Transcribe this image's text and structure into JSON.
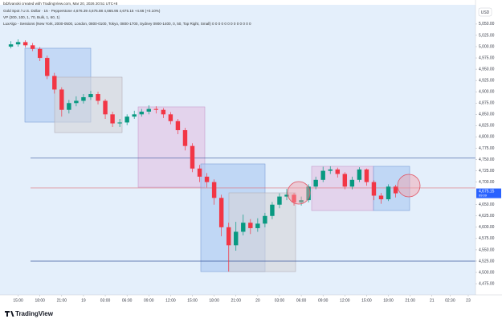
{
  "header": {
    "credit": "bdzlvanoki created with TradingView.com, Mar 20, 2026 20:51 UTC+8",
    "symbol": "Gold Spot / U.S. Dollar · 15 · Pepperstone  4,676.39  4,675.88  4,665.95  4,675.15  +4.66 (+0.10%)",
    "indicator1": "VP (200, 100, 1, 70, Bulk, 1, 60, 1)",
    "indicator2": "LuxAlgo - Sessions (New York, 2000-0500, London, 0800-0100, Tokyo, 0800-1700, Sydney 0900-1400, 0, 50, Top Right, Small)  0 0 0 0 0 0 0 0 0 0 0 0 0",
    "currency": "USD"
  },
  "footer": {
    "brand": "TradingView"
  },
  "chart_data": {
    "type": "candlestick",
    "up_color": "#089981",
    "down_color": "#f23645",
    "open": [
      5000,
      5005,
      5010,
      5003,
      4995,
      4975,
      4935,
      4905,
      4860,
      4875,
      4880,
      4888,
      4895,
      4880,
      4850,
      4830,
      4832,
      4845,
      4850,
      4856,
      4862,
      4860,
      4850,
      4835,
      4815,
      4780,
      4730,
      4712,
      4700,
      4665,
      4600,
      4560,
      4590,
      4610,
      4598,
      4608,
      4625,
      4650,
      4668,
      4672,
      4655,
      4660,
      4690,
      4705,
      4725,
      4728,
      4718,
      4690,
      4705,
      4728,
      4700,
      4670,
      4662,
      4690
    ],
    "high": [
      5012,
      5016,
      5014,
      5008,
      4999,
      4980,
      4942,
      4910,
      4882,
      4890,
      4895,
      4902,
      4900,
      4884,
      4856,
      4840,
      4850,
      4858,
      4862,
      4870,
      4868,
      4864,
      4855,
      4840,
      4820,
      4786,
      4738,
      4720,
      4706,
      4672,
      4610,
      4612,
      4628,
      4618,
      4620,
      4632,
      4656,
      4675,
      4685,
      4676,
      4668,
      4695,
      4712,
      4734,
      4735,
      4732,
      4722,
      4712,
      4733,
      4730,
      4704,
      4676,
      4695,
      4694
    ],
    "low": [
      4996,
      5000,
      4998,
      4990,
      4968,
      4928,
      4896,
      4845,
      4852,
      4868,
      4874,
      4882,
      4872,
      4840,
      4822,
      4822,
      4826,
      4840,
      4845,
      4850,
      4852,
      4842,
      4828,
      4806,
      4770,
      4722,
      4700,
      4688,
      4650,
      4580,
      4502,
      4548,
      4582,
      4585,
      4590,
      4600,
      4618,
      4642,
      4660,
      4648,
      4648,
      4655,
      4684,
      4700,
      4718,
      4710,
      4684,
      4684,
      4700,
      4692,
      4660,
      4652,
      4658,
      4666
    ],
    "close": [
      5005,
      5010,
      5003,
      4995,
      4975,
      4935,
      4905,
      4860,
      4875,
      4880,
      4888,
      4895,
      4880,
      4850,
      4830,
      4832,
      4845,
      4850,
      4856,
      4862,
      4860,
      4850,
      4835,
      4815,
      4780,
      4730,
      4712,
      4700,
      4665,
      4600,
      4560,
      4590,
      4610,
      4598,
      4608,
      4625,
      4650,
      4668,
      4672,
      4655,
      4660,
      4690,
      4705,
      4725,
      4728,
      4718,
      4690,
      4705,
      4728,
      4700,
      4670,
      4662,
      4690,
      4675.15
    ],
    "levels": [
      {
        "value": 4753,
        "color": "#3d5a9e"
      },
      {
        "value": 4687,
        "color": "#e0707a"
      },
      {
        "value": 4525,
        "color": "#3d5a9e"
      }
    ],
    "price_tag": {
      "label": "4,675.15",
      "time": "09:09",
      "color": "#2962ff"
    },
    "xlim": [
      -1.5,
      64
    ],
    "xticks": [
      {
        "value": 1,
        "label": "15:00"
      },
      {
        "value": 4,
        "label": "18:00"
      },
      {
        "value": 7,
        "label": "21:00"
      },
      {
        "value": 10,
        "label": "19"
      },
      {
        "value": 13,
        "label": "03:00"
      },
      {
        "value": 16,
        "label": "06:00"
      },
      {
        "value": 19,
        "label": "09:00"
      },
      {
        "value": 22,
        "label": "12:00"
      },
      {
        "value": 25,
        "label": "15:00"
      },
      {
        "value": 28,
        "label": "18:00"
      },
      {
        "value": 31,
        "label": "21:00"
      },
      {
        "value": 34,
        "label": "20"
      },
      {
        "value": 37,
        "label": "03:00"
      },
      {
        "value": 40,
        "label": "06:00"
      },
      {
        "value": 43,
        "label": "09:00"
      },
      {
        "value": 46,
        "label": "12:00"
      },
      {
        "value": 49,
        "label": "15:00"
      },
      {
        "value": 52,
        "label": "18:00"
      },
      {
        "value": 55,
        "label": "21:00"
      },
      {
        "value": 58,
        "label": "21"
      },
      {
        "value": 60.5,
        "label": "02:30"
      },
      {
        "value": 63,
        "label": "23"
      }
    ],
    "ylim": [
      4452,
      5089
    ],
    "yticks": [
      {
        "value": 5050,
        "label": "5,050.00"
      },
      {
        "value": 5025,
        "label": "5,025.00"
      },
      {
        "value": 5000,
        "label": "5,000.00"
      },
      {
        "value": 4975,
        "label": "4,975.00"
      },
      {
        "value": 4950,
        "label": "4,950.00"
      },
      {
        "value": 4925,
        "label": "4,925.00"
      },
      {
        "value": 4900,
        "label": "4,900.00"
      },
      {
        "value": 4875,
        "label": "4,875.00"
      },
      {
        "value": 4850,
        "label": "4,850.00"
      },
      {
        "value": 4825,
        "label": "4,825.00"
      },
      {
        "value": 4800,
        "label": "4,800.00"
      },
      {
        "value": 4775,
        "label": "4,775.00"
      },
      {
        "value": 4750,
        "label": "4,750.00"
      },
      {
        "value": 4725,
        "label": "4,725.00"
      },
      {
        "value": 4700,
        "label": "4,700.00"
      },
      {
        "value": 4650,
        "label": "4,650.00"
      },
      {
        "value": 4625,
        "label": "4,625.00"
      },
      {
        "value": 4600,
        "label": "4,600.00"
      },
      {
        "value": 4575,
        "label": "4,575.00"
      },
      {
        "value": 4550,
        "label": "4,550.00"
      },
      {
        "value": 4525,
        "label": "4,525.00"
      },
      {
        "value": 4500,
        "label": "4,500.00"
      },
      {
        "value": 4475,
        "label": "4,475.00"
      }
    ],
    "grid": false
  }
}
